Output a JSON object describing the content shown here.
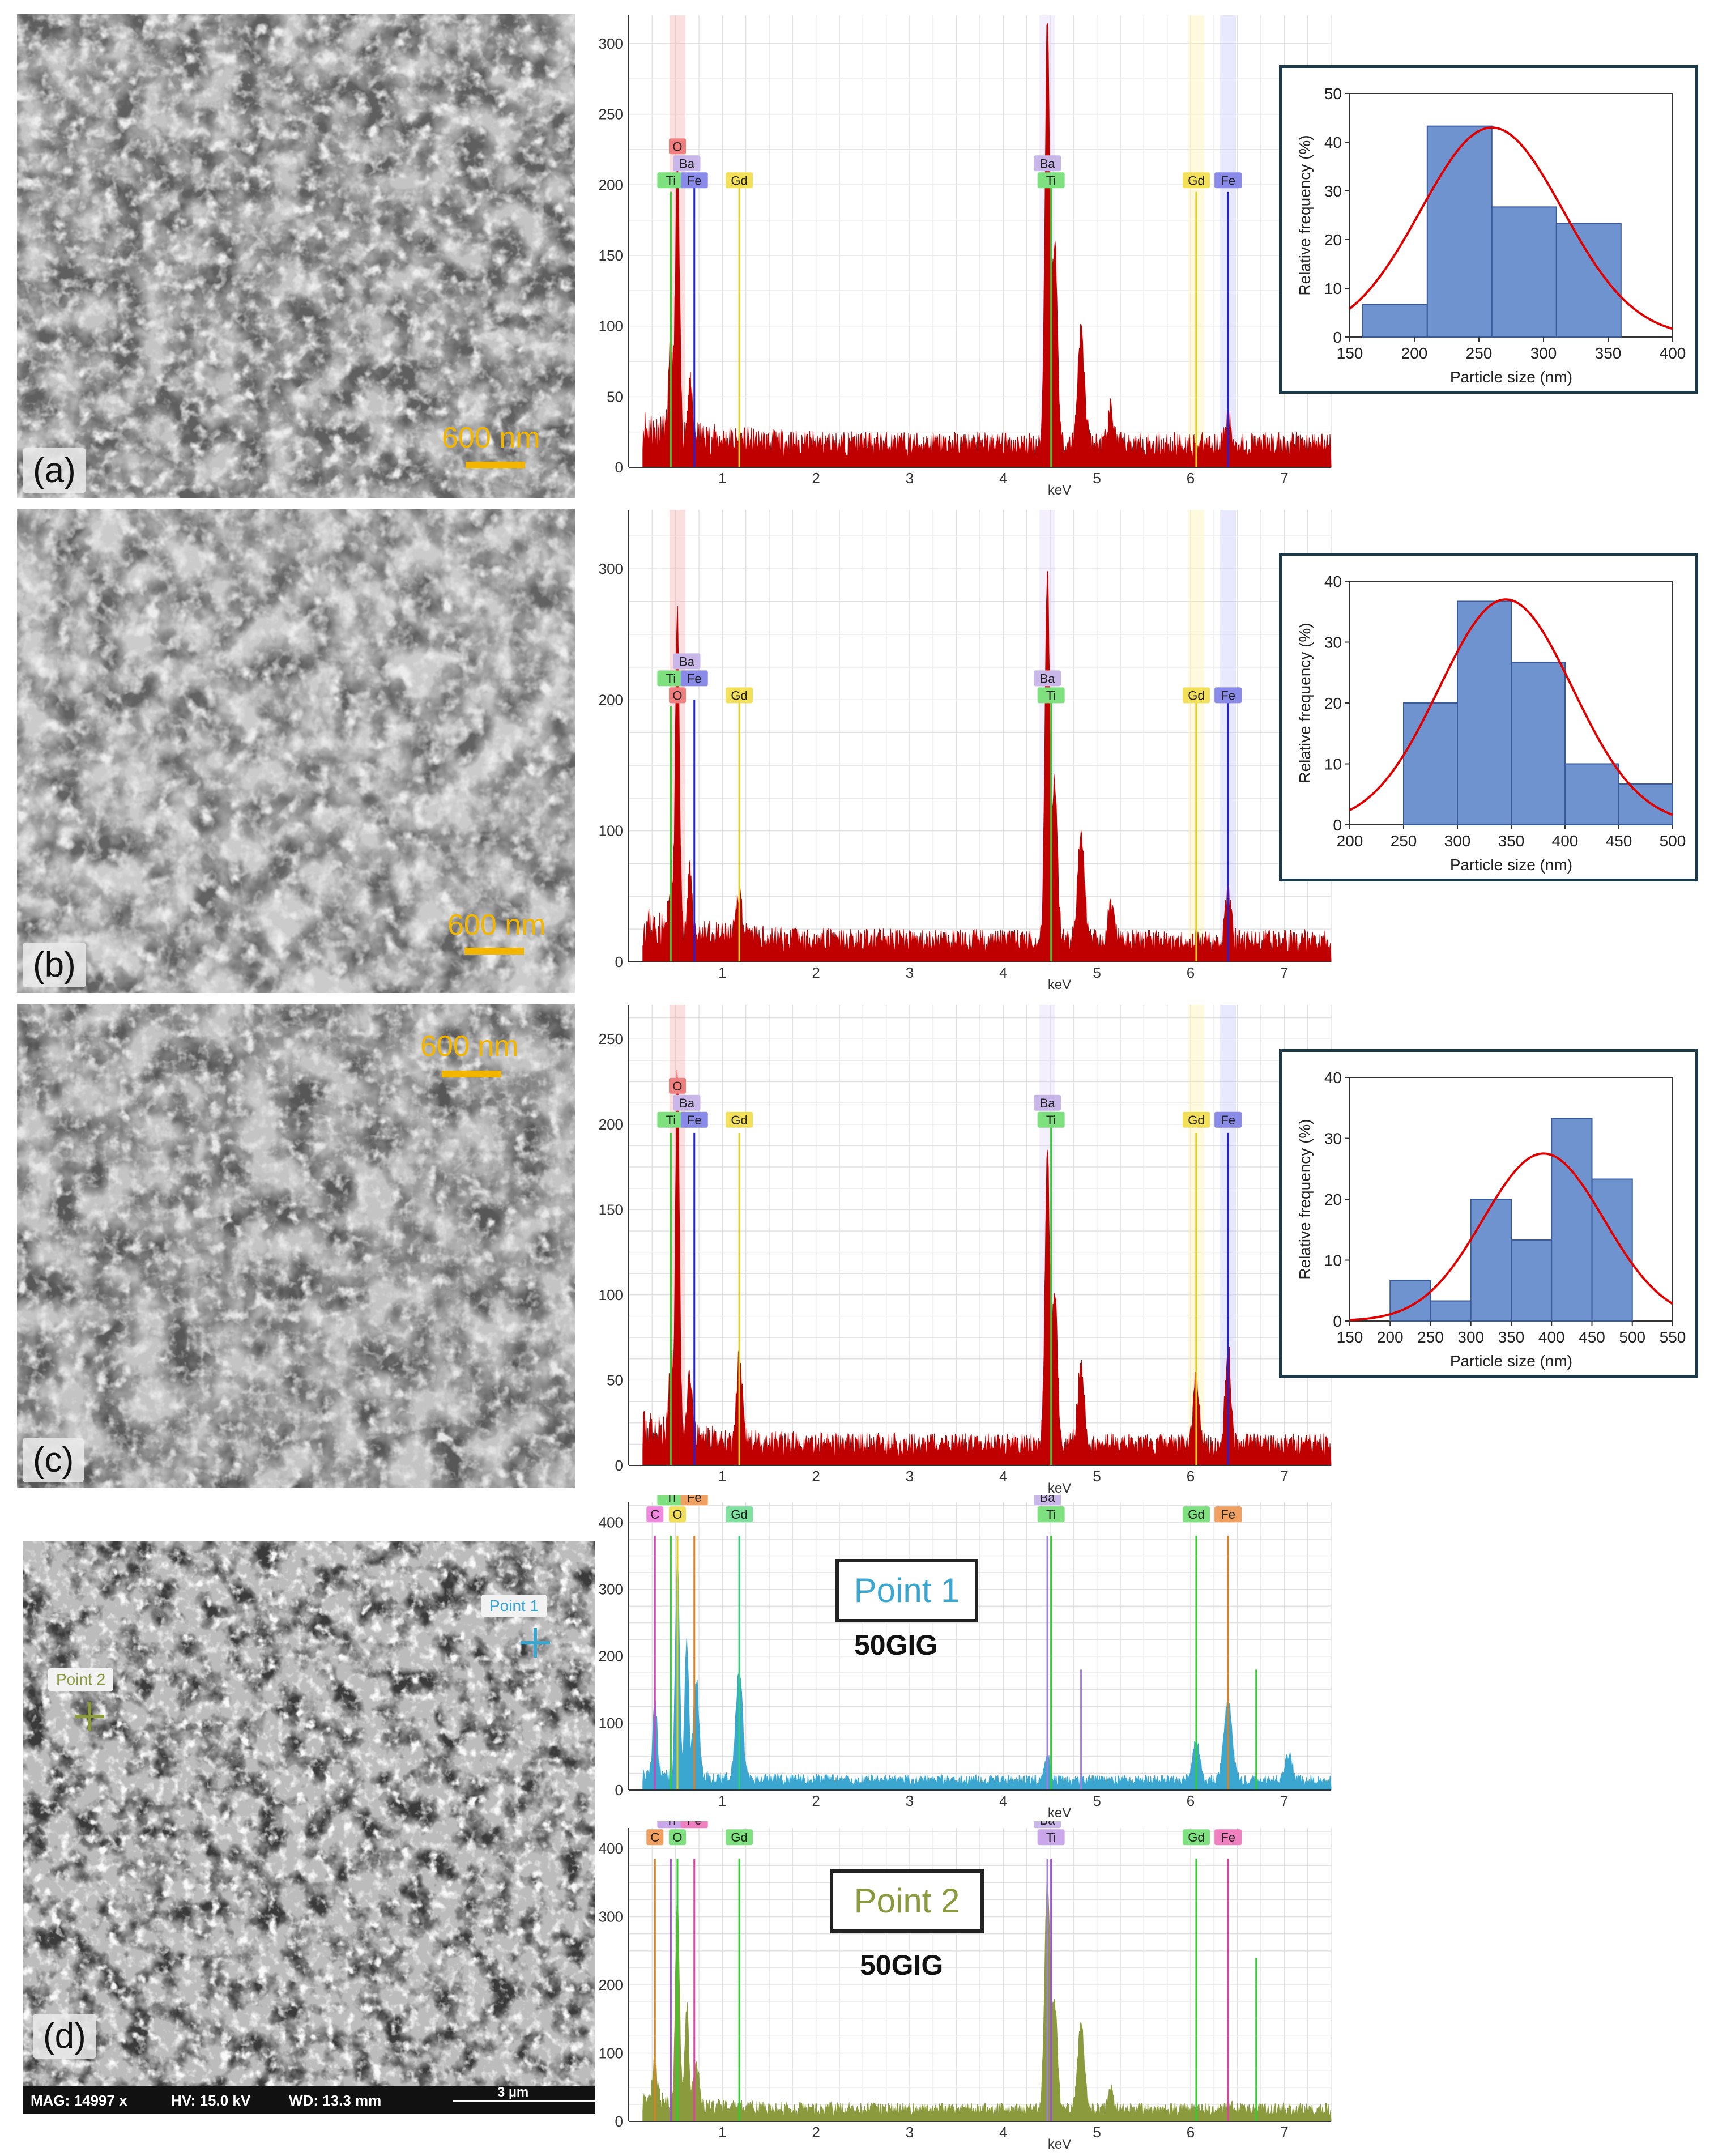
{
  "figure": {
    "scale_label": "600 nm",
    "panels": [
      {
        "label": "(a)",
        "eds": {
          "ymax": 320,
          "yticks": [
            0,
            50,
            100,
            150,
            200,
            250,
            300
          ],
          "tags": [
            {
              "el": "O",
              "kev": 0.52,
              "row": 2,
              "color": "#f08080"
            },
            {
              "el": "Ba",
              "kev": 0.62,
              "row": 1,
              "color": "#c9b7ea"
            },
            {
              "el": "Ti",
              "kev": 0.45,
              "row": 0,
              "color": "#7fe07f"
            },
            {
              "el": "Fe",
              "kev": 0.7,
              "row": 0,
              "color": "#8a8ae8"
            },
            {
              "el": "Gd",
              "kev": 1.18,
              "row": 0,
              "color": "#f3e05a"
            },
            {
              "el": "Ba",
              "kev": 4.47,
              "row": 1,
              "color": "#c9b7ea"
            },
            {
              "el": "Ti",
              "kev": 4.51,
              "row": 0,
              "color": "#7fe07f"
            },
            {
              "el": "Gd",
              "kev": 6.06,
              "row": 0,
              "color": "#f3e05a"
            },
            {
              "el": "Fe",
              "kev": 6.4,
              "row": 0,
              "color": "#8a8ae8"
            }
          ]
        },
        "hist": {
          "xticks": [
            150,
            200,
            250,
            300,
            350,
            400
          ],
          "xlim": [
            150,
            400
          ],
          "ylim": [
            0,
            50
          ],
          "yticks": [
            0,
            10,
            20,
            30,
            40,
            50
          ],
          "bins": [
            [
              160,
              210,
              6.7
            ],
            [
              210,
              260,
              43.3
            ],
            [
              260,
              310,
              26.7
            ],
            [
              310,
              360,
              23.3
            ]
          ],
          "mean": 260,
          "sd": 55,
          "peak": 43
        }
      },
      {
        "label": "(b)",
        "eds": {
          "ymax": 345,
          "yticks": [
            0,
            100,
            200,
            300
          ],
          "tags": [
            {
              "el": "Ba",
              "kev": 0.62,
              "row": 2,
              "color": "#c9b7ea"
            },
            {
              "el": "Ti",
              "kev": 0.45,
              "row": 1,
              "color": "#7fe07f"
            },
            {
              "el": "Fe",
              "kev": 0.7,
              "row": 1,
              "color": "#8a8ae8"
            },
            {
              "el": "O",
              "kev": 0.52,
              "row": 0,
              "color": "#f08080"
            },
            {
              "el": "Gd",
              "kev": 1.18,
              "row": 0,
              "color": "#f3e05a"
            },
            {
              "el": "Ba",
              "kev": 4.47,
              "row": 1,
              "color": "#c9b7ea"
            },
            {
              "el": "Ti",
              "kev": 4.51,
              "row": 0,
              "color": "#7fe07f"
            },
            {
              "el": "Gd",
              "kev": 6.06,
              "row": 0,
              "color": "#f3e05a"
            },
            {
              "el": "Fe",
              "kev": 6.4,
              "row": 0,
              "color": "#8a8ae8"
            }
          ]
        },
        "hist": {
          "xticks": [
            200,
            250,
            300,
            350,
            400,
            450,
            500
          ],
          "xlim": [
            200,
            500
          ],
          "ylim": [
            0,
            40
          ],
          "yticks": [
            0,
            10,
            20,
            30,
            40
          ],
          "bins": [
            [
              250,
              300,
              20
            ],
            [
              300,
              350,
              36.7
            ],
            [
              350,
              400,
              26.7
            ],
            [
              400,
              450,
              10
            ],
            [
              450,
              500,
              6.7
            ]
          ],
          "mean": 345,
          "sd": 62,
          "peak": 37
        }
      },
      {
        "label": "(c)",
        "eds": {
          "ymax": 270,
          "yticks": [
            0,
            50,
            100,
            150,
            200,
            250
          ],
          "tags": [
            {
              "el": "O",
              "kev": 0.52,
              "row": 2,
              "color": "#f08080"
            },
            {
              "el": "Ba",
              "kev": 0.62,
              "row": 1,
              "color": "#c9b7ea"
            },
            {
              "el": "Ti",
              "kev": 0.45,
              "row": 0,
              "color": "#7fe07f"
            },
            {
              "el": "Fe",
              "kev": 0.7,
              "row": 0,
              "color": "#8a8ae8"
            },
            {
              "el": "Gd",
              "kev": 1.18,
              "row": 0,
              "color": "#f3e05a"
            },
            {
              "el": "Ba",
              "kev": 4.47,
              "row": 1,
              "color": "#c9b7ea"
            },
            {
              "el": "Ti",
              "kev": 4.51,
              "row": 0,
              "color": "#7fe07f"
            },
            {
              "el": "Gd",
              "kev": 6.06,
              "row": 0,
              "color": "#f3e05a"
            },
            {
              "el": "Fe",
              "kev": 6.4,
              "row": 0,
              "color": "#8a8ae8"
            }
          ]
        },
        "hist": {
          "xticks": [
            150,
            200,
            250,
            300,
            350,
            400,
            450,
            500,
            550
          ],
          "xlim": [
            150,
            550
          ],
          "ylim": [
            0,
            40
          ],
          "yticks": [
            0,
            10,
            20,
            30,
            40
          ],
          "bins": [
            [
              200,
              250,
              6.7
            ],
            [
              250,
              300,
              3.3
            ],
            [
              300,
              350,
              20
            ],
            [
              350,
              400,
              13.3
            ],
            [
              400,
              450,
              33.3
            ],
            [
              450,
              500,
              23.3
            ]
          ],
          "mean": 390,
          "sd": 75,
          "peak": 27.5
        }
      }
    ],
    "panel_d": {
      "label": "(d)",
      "point1_label": "Point 1",
      "point2_label": "Point 2",
      "sample_name": "50GIG",
      "status": {
        "mag": "MAG: 14997 x",
        "hv": "HV: 15.0 kV",
        "wd": "WD: 13.3 mm",
        "scale": "3 µm"
      },
      "point1_color": "#3ba6d0",
      "point2_color": "#8a9a3c",
      "eds_ymax": 430,
      "eds_yticks": [
        0,
        100,
        200,
        300,
        400
      ],
      "point1_tags": [
        {
          "el": "Ba",
          "kev": 0.62,
          "row": 3,
          "color": "#c9b7ea"
        },
        {
          "el": "Ti",
          "kev": 0.45,
          "row": 2,
          "color": "#7fe07f"
        },
        {
          "el": "Fe",
          "kev": 0.7,
          "row": 2,
          "color": "#f0a060"
        },
        {
          "el": "C",
          "kev": 0.28,
          "row": 1,
          "color": "#f08ae0"
        },
        {
          "el": "O",
          "kev": 0.52,
          "row": 1,
          "color": "#f3e05a"
        },
        {
          "el": "Gd",
          "kev": 1.18,
          "row": 1,
          "color": "#7fe0a0"
        },
        {
          "el": "Ba",
          "kev": 4.47,
          "row": 2,
          "color": "#c9b7ea"
        },
        {
          "el": "Ti",
          "kev": 4.51,
          "row": 1,
          "color": "#7fe07f"
        },
        {
          "el": "Gd",
          "kev": 6.06,
          "row": 1,
          "color": "#7fe07f"
        },
        {
          "el": "Fe",
          "kev": 6.4,
          "row": 1,
          "color": "#f0a060"
        }
      ],
      "point2_tags": [
        {
          "el": "Ba",
          "kev": 0.62,
          "row": 3,
          "color": "#c9b7ea"
        },
        {
          "el": "Ti",
          "kev": 0.45,
          "row": 2,
          "color": "#c9a7ea"
        },
        {
          "el": "Fe",
          "kev": 0.7,
          "row": 2,
          "color": "#f080c0"
        },
        {
          "el": "C",
          "kev": 0.28,
          "row": 1,
          "color": "#f0a060"
        },
        {
          "el": "O",
          "kev": 0.52,
          "row": 1,
          "color": "#7fe07f"
        },
        {
          "el": "Gd",
          "kev": 1.18,
          "row": 1,
          "color": "#7fe07f"
        },
        {
          "el": "Ba",
          "kev": 4.47,
          "row": 2,
          "color": "#c9b7ea"
        },
        {
          "el": "Ti",
          "kev": 4.51,
          "row": 1,
          "color": "#c9a7ea"
        },
        {
          "el": "Gd",
          "kev": 6.06,
          "row": 1,
          "color": "#7fe07f"
        },
        {
          "el": "Fe",
          "kev": 6.4,
          "row": 1,
          "color": "#f080c0"
        }
      ]
    },
    "eds_xlabel": "keV",
    "eds_xticks": [
      1,
      2,
      3,
      4,
      5,
      6,
      7
    ],
    "hist_xlabel": "Particle size (nm)",
    "hist_ylabel": "Relative frequency (%)",
    "colors": {
      "spectrum_red": "#c00000",
      "scale_yellow": "#f3b600",
      "hist_bar": "#6f93cf",
      "fit": "#e00000"
    }
  }
}
